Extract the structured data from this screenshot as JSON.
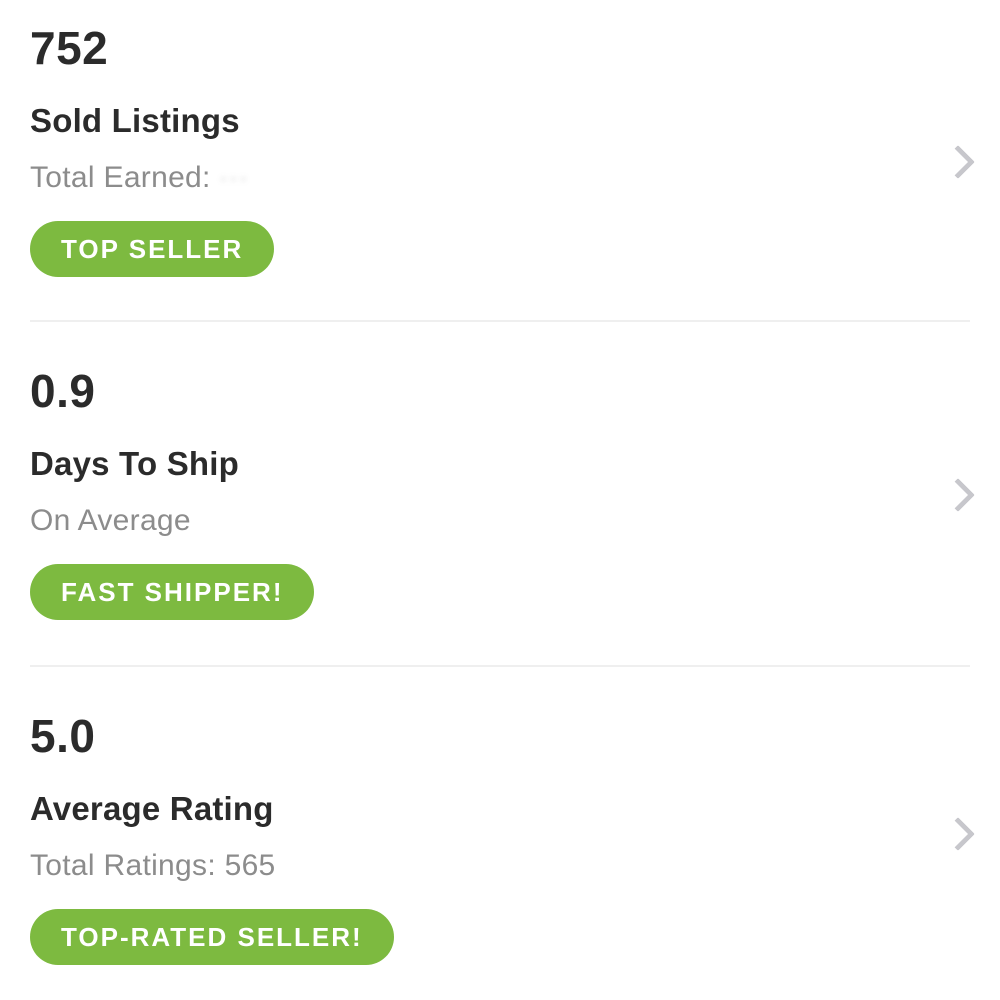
{
  "accent_color": "#7dba40",
  "icons": {
    "chevron_right": "chevron-right"
  },
  "stats": [
    {
      "value": "752",
      "title": "Sold Listings",
      "subtitle": "Total Earned:",
      "subtitle_redacted": "···",
      "badge": "TOP SELLER"
    },
    {
      "value": "0.9",
      "title": "Days To Ship",
      "subtitle": "On Average",
      "badge": "FAST SHIPPER!"
    },
    {
      "value": "5.0",
      "title": "Average Rating",
      "subtitle": "Total Ratings: 565",
      "badge": "TOP-RATED SELLER!"
    }
  ]
}
